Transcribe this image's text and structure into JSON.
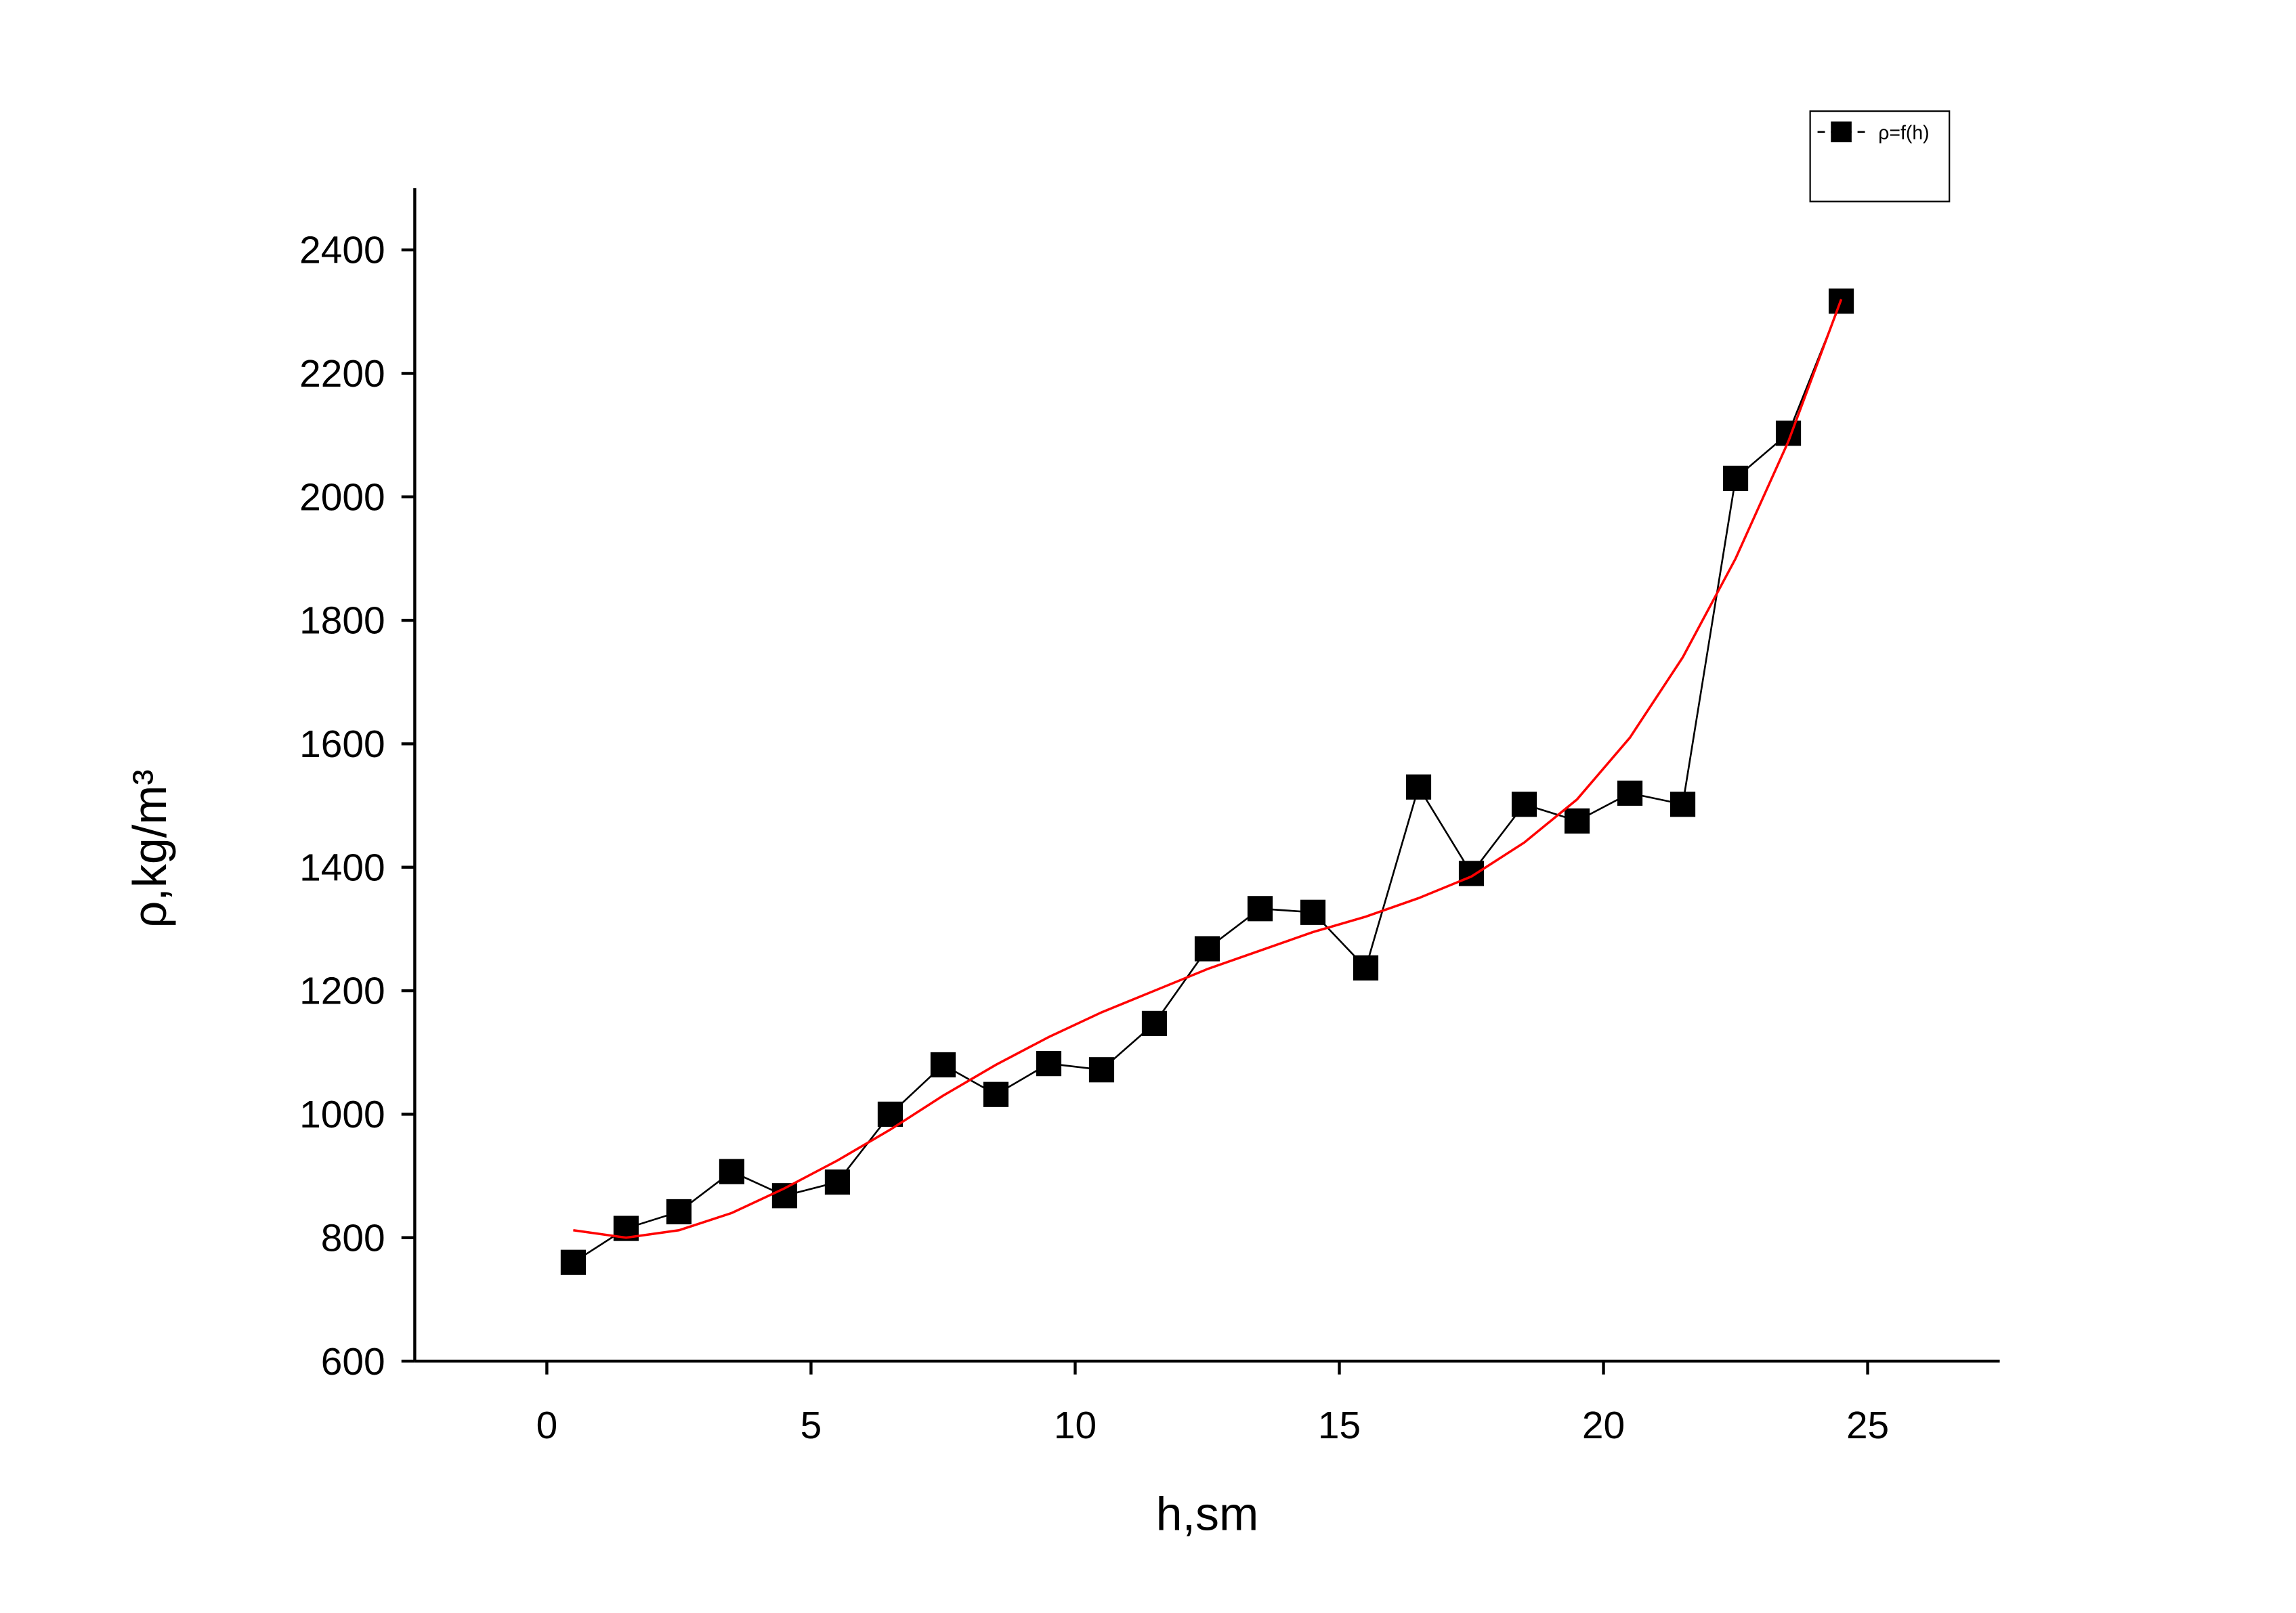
{
  "chart_data": {
    "type": "line",
    "x_label": "h,sm",
    "y_label": "ρ,kg/m³",
    "x": [
      0.5,
      1.5,
      2.5,
      3.5,
      4.5,
      5.5,
      6.5,
      7.5,
      8.5,
      9.5,
      10.5,
      11.5,
      12.5,
      13.5,
      14.5,
      15.5,
      16.5,
      17.5,
      18.5,
      19.5,
      20.5,
      21.5,
      22.5,
      23.5,
      24.5
    ],
    "series": [
      {
        "name": "ρ=f(h)",
        "color": "#000000",
        "marker": "square",
        "values": [
          760,
          815,
          842,
          907,
          868,
          890,
          1000,
          1080,
          1032,
          1082,
          1072,
          1147,
          1268,
          1333,
          1327,
          1237,
          1530,
          1390,
          1502,
          1475,
          1520,
          1502,
          2030,
          2103,
          2317
        ]
      },
      {
        "color": "#ff0000",
        "marker": "none",
        "values": [
          812,
          800,
          812,
          840,
          880,
          925,
          975,
          1030,
          1080,
          1125,
          1165,
          1200,
          1235,
          1265,
          1295,
          1320,
          1350,
          1385,
          1440,
          1510,
          1610,
          1740,
          1900,
          2090,
          2320
        ]
      }
    ],
    "xlim": [
      -2.5,
      27.5
    ],
    "ylim": [
      600,
      2500
    ],
    "xticks": [
      0,
      5,
      10,
      15,
      20,
      25
    ],
    "yticks": [
      600,
      800,
      1000,
      1200,
      1400,
      1600,
      1800,
      2000,
      2200,
      2400
    ],
    "grid": false,
    "legend": "top-right"
  }
}
